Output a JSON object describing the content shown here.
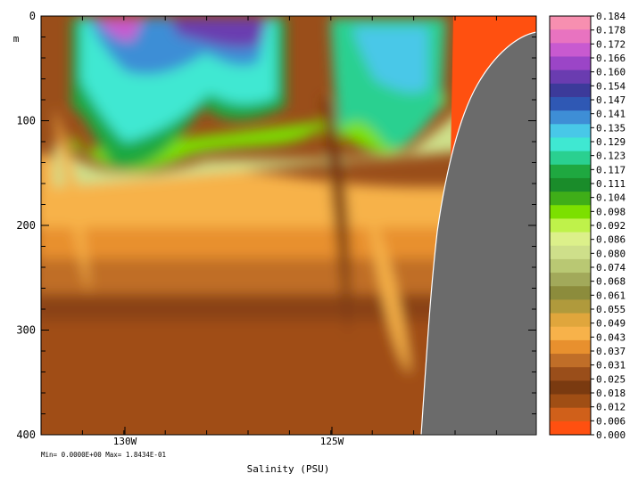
{
  "chart_data": {
    "type": "heatmap",
    "title": "",
    "xlabel": "Salinity (PSU)",
    "ylabel": "m",
    "x_ticks": [
      "130W",
      "125W"
    ],
    "y_ticks": [
      0,
      100,
      200,
      300,
      400
    ],
    "ylim": [
      400,
      0
    ],
    "y_inverted": true,
    "stats_text": "Min= 0.0000E+00  Max= 1.8434E-01",
    "colorbar": {
      "labels": [
        "0.184",
        "0.178",
        "0.172",
        "0.166",
        "0.160",
        "0.154",
        "0.147",
        "0.141",
        "0.135",
        "0.129",
        "0.123",
        "0.117",
        "0.111",
        "0.104",
        "0.098",
        "0.092",
        "0.086",
        "0.080",
        "0.074",
        "0.068",
        "0.061",
        "0.055",
        "0.049",
        "0.043",
        "0.037",
        "0.031",
        "0.025",
        "0.018",
        "0.012",
        "0.006",
        "0.000"
      ],
      "colors": [
        "#f78fb0",
        "#e873c0",
        "#c85ad0",
        "#9b45c7",
        "#6a3cb0",
        "#3c3a9a",
        "#2f58b4",
        "#3e8ed6",
        "#48c8e8",
        "#3fe8d2",
        "#2ad090",
        "#1fa840",
        "#1a8c2a",
        "#3fae18",
        "#7ce000",
        "#bff24a",
        "#dcf08a",
        "#cedf8a",
        "#b9c873",
        "#a2a95a",
        "#8c8c3c",
        "#b09a3c",
        "#e0a63c",
        "#f7b24a",
        "#e8902e",
        "#c06e28",
        "#9a4e1a",
        "#7a3a10",
        "#a04e14",
        "#d0601a",
        "#ff5010"
      ],
      "min": 0.0,
      "max": 0.18434
    },
    "land_color": "#6b6b6b",
    "surface_color": "#ff5010"
  }
}
